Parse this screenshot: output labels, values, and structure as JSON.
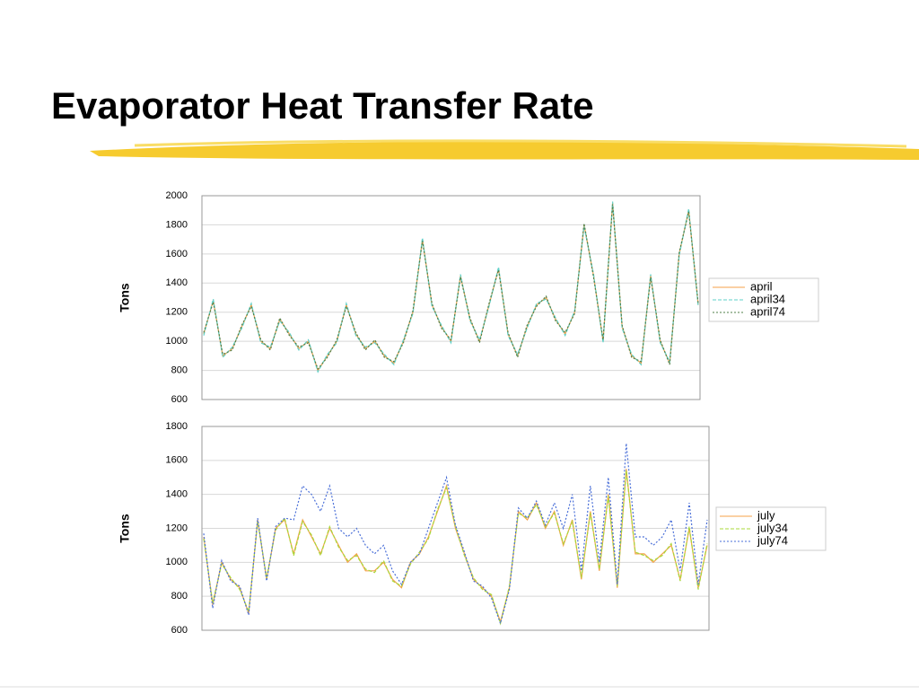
{
  "title": "Evaporator Heat Transfer Rate",
  "chart_data": [
    {
      "type": "line",
      "ylabel": "Tons",
      "ylim": [
        600,
        2000
      ],
      "yticks": [
        600,
        800,
        1000,
        1200,
        1400,
        1600,
        1800,
        2000
      ],
      "grid": true,
      "legend": "right",
      "series": [
        {
          "name": "april",
          "color": "#f4a24a",
          "dash": "none",
          "values": [
            1050,
            1280,
            900,
            950,
            1100,
            1250,
            1000,
            950,
            1150,
            1050,
            950,
            1000,
            800,
            900,
            1000,
            1250,
            1050,
            950,
            1000,
            900,
            850,
            1000,
            1200,
            1700,
            1250,
            1100,
            1000,
            1450,
            1150,
            1000,
            1250,
            1500,
            1050,
            900,
            1100,
            1250,
            1300,
            1150,
            1050,
            1200,
            1800,
            1450,
            1000,
            1950,
            1100,
            900,
            850,
            1450,
            1000,
            850,
            1600,
            1900,
            1250
          ]
        },
        {
          "name": "april34",
          "color": "#5fd0c8",
          "dash": "4 2",
          "values": [
            1040,
            1290,
            890,
            960,
            1090,
            1260,
            990,
            960,
            1140,
            1060,
            940,
            1010,
            790,
            910,
            990,
            1260,
            1040,
            960,
            990,
            910,
            840,
            1010,
            1190,
            1710,
            1240,
            1110,
            990,
            1460,
            1140,
            1010,
            1240,
            1510,
            1040,
            910,
            1090,
            1260,
            1290,
            1160,
            1040,
            1210,
            1790,
            1460,
            990,
            1960,
            1090,
            910,
            840,
            1460,
            990,
            860,
            1590,
            1910,
            1240
          ]
        },
        {
          "name": "april74",
          "color": "#4f7f4a",
          "dash": "2 2",
          "values": [
            1060,
            1270,
            910,
            940,
            1110,
            1240,
            1010,
            940,
            1160,
            1040,
            960,
            990,
            810,
            890,
            1010,
            1240,
            1060,
            940,
            1010,
            890,
            860,
            990,
            1210,
            1690,
            1260,
            1090,
            1010,
            1440,
            1160,
            990,
            1260,
            1490,
            1060,
            890,
            1110,
            1240,
            1310,
            1140,
            1060,
            1190,
            1810,
            1440,
            1010,
            1940,
            1110,
            890,
            860,
            1440,
            1010,
            840,
            1610,
            1890,
            1260
          ]
        }
      ]
    },
    {
      "type": "line",
      "ylabel": "Tons",
      "ylim": [
        600,
        1800
      ],
      "yticks": [
        600,
        800,
        1000,
        1200,
        1400,
        1600,
        1800
      ],
      "grid": true,
      "legend": "right",
      "series": [
        {
          "name": "july",
          "color": "#f4a24a",
          "dash": "none",
          "values": [
            1150,
            750,
            1000,
            900,
            850,
            700,
            1250,
            900,
            1200,
            1250,
            1050,
            1250,
            1150,
            1050,
            1200,
            1100,
            1000,
            1050,
            950,
            950,
            1000,
            900,
            850,
            1000,
            1050,
            1150,
            1300,
            1450,
            1200,
            1050,
            900,
            850,
            800,
            650,
            850,
            1300,
            1250,
            1350,
            1200,
            1300,
            1100,
            1250,
            900,
            1300,
            950,
            1400,
            850,
            1550,
            1050,
            1050,
            1000,
            1050,
            1100,
            900,
            1200,
            850,
            1100
          ]
        },
        {
          "name": "july34",
          "color": "#a8d83a",
          "dash": "4 2",
          "values": [
            1140,
            760,
            990,
            910,
            840,
            710,
            1240,
            910,
            1190,
            1260,
            1040,
            1240,
            1160,
            1040,
            1210,
            1090,
            1010,
            1040,
            960,
            940,
            1010,
            890,
            860,
            990,
            1060,
            1140,
            1310,
            1440,
            1210,
            1040,
            910,
            840,
            810,
            640,
            860,
            1290,
            1260,
            1340,
            1210,
            1290,
            1110,
            1240,
            910,
            1290,
            960,
            1390,
            860,
            1540,
            1060,
            1040,
            1010,
            1040,
            1110,
            890,
            1210,
            840,
            1110
          ]
        },
        {
          "name": "july74",
          "color": "#4a6fd8",
          "dash": "2 2",
          "values": [
            1170,
            730,
            1010,
            890,
            860,
            690,
            1260,
            890,
            1210,
            1260,
            1250,
            1450,
            1400,
            1300,
            1450,
            1200,
            1150,
            1200,
            1100,
            1050,
            1100,
            950,
            870,
            1000,
            1050,
            1200,
            1350,
            1500,
            1220,
            1060,
            890,
            860,
            790,
            640,
            840,
            1320,
            1260,
            1360,
            1220,
            1350,
            1200,
            1400,
            950,
            1450,
            1000,
            1500,
            870,
            1700,
            1150,
            1150,
            1100,
            1150,
            1250,
            950,
            1350,
            870,
            1250
          ]
        }
      ]
    }
  ]
}
